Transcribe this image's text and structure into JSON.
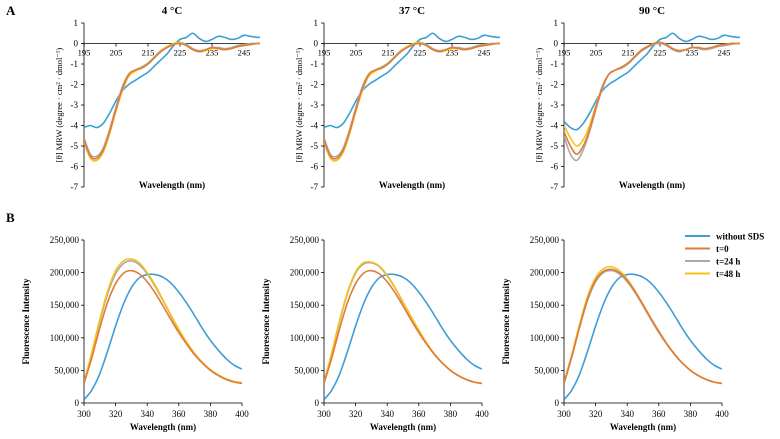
{
  "figure": {
    "panel_a_label": "A",
    "panel_b_label": "B"
  },
  "legend": {
    "entries": [
      {
        "label": "without SDS",
        "color": "#3d9fd6"
      },
      {
        "label": "t=0",
        "color": "#e07b39"
      },
      {
        "label": "t=24 h",
        "color": "#a9a9a9"
      },
      {
        "label": "t=48 h",
        "color": "#f5c21b"
      }
    ]
  },
  "colors": {
    "without_sds": "#3d9fd6",
    "t0": "#e07b39",
    "t24": "#a9a9a9",
    "t48": "#f5c21b",
    "axis": "#000000"
  },
  "chart_data": [
    {
      "id": "cd_4",
      "type": "line",
      "title": "4 °C",
      "xlabel": "Wavelength  (nm)",
      "ylabel": "[θ] MRW (degree · cm² · dmol⁻¹)",
      "xlim": [
        195,
        250
      ],
      "ylim": [
        -7,
        1
      ],
      "xticks": [
        195,
        205,
        215,
        225,
        235,
        245
      ],
      "yticks": [
        1,
        0,
        -1,
        -2,
        -3,
        -4,
        -5,
        -6,
        -7
      ],
      "x": [
        195,
        197,
        199,
        201,
        203,
        205,
        207,
        209,
        211,
        213,
        215,
        217,
        219,
        221,
        223,
        225,
        227,
        229,
        231,
        233,
        235,
        237,
        239,
        241,
        243,
        245,
        247,
        249,
        250
      ],
      "series": [
        {
          "name": "without SDS",
          "values": [
            -4.1,
            -4.0,
            -4.1,
            -3.9,
            -3.4,
            -2.8,
            -2.3,
            -2.0,
            -1.8,
            -1.6,
            -1.4,
            -1.1,
            -0.8,
            -0.5,
            -0.1,
            0.2,
            0.3,
            0.5,
            0.25,
            0.1,
            0.2,
            0.35,
            0.3,
            0.2,
            0.25,
            0.4,
            0.35,
            0.3,
            0.3
          ]
        },
        {
          "name": "t=0",
          "values": [
            -4.7,
            -5.5,
            -5.6,
            -5.2,
            -4.3,
            -3.2,
            -2.2,
            -1.5,
            -1.3,
            -1.2,
            -1.0,
            -0.7,
            -0.4,
            -0.2,
            -0.05,
            0.0,
            -0.1,
            -0.3,
            -0.4,
            -0.3,
            -0.2,
            -0.25,
            -0.3,
            -0.25,
            -0.15,
            -0.1,
            -0.05,
            0.0,
            0.0
          ]
        },
        {
          "name": "t=24 h",
          "values": [
            -4.6,
            -5.4,
            -5.5,
            -5.1,
            -4.2,
            -3.1,
            -2.1,
            -1.5,
            -1.3,
            -1.15,
            -0.95,
            -0.65,
            -0.35,
            -0.15,
            0.0,
            0.05,
            -0.05,
            -0.25,
            -0.35,
            -0.3,
            -0.2,
            -0.2,
            -0.25,
            -0.2,
            -0.1,
            -0.05,
            0.0,
            0.0,
            0.0
          ]
        },
        {
          "name": "t=48 h",
          "values": [
            -4.8,
            -5.6,
            -5.7,
            -5.3,
            -4.4,
            -3.3,
            -2.3,
            -1.6,
            -1.35,
            -1.2,
            -1.0,
            -0.7,
            -0.4,
            -0.15,
            0.0,
            0.05,
            -0.1,
            -0.3,
            -0.4,
            -0.35,
            -0.25,
            -0.25,
            -0.3,
            -0.25,
            -0.15,
            -0.1,
            -0.05,
            0.0,
            0.0
          ]
        }
      ]
    },
    {
      "id": "cd_37",
      "type": "line",
      "title": "37 °C",
      "xlabel": "Wavelength  (nm)",
      "ylabel": "[θ] MRW (degree · cm² · dmol⁻¹)",
      "xlim": [
        195,
        250
      ],
      "ylim": [
        -7,
        1
      ],
      "xticks": [
        195,
        205,
        215,
        225,
        235,
        245
      ],
      "yticks": [
        1,
        0,
        -1,
        -2,
        -3,
        -4,
        -5,
        -6,
        -7
      ],
      "x": [
        195,
        197,
        199,
        201,
        203,
        205,
        207,
        209,
        211,
        213,
        215,
        217,
        219,
        221,
        223,
        225,
        227,
        229,
        231,
        233,
        235,
        237,
        239,
        241,
        243,
        245,
        247,
        249,
        250
      ],
      "series": [
        {
          "name": "without SDS",
          "values": [
            -4.1,
            -4.0,
            -4.1,
            -3.9,
            -3.4,
            -2.8,
            -2.3,
            -2.0,
            -1.8,
            -1.6,
            -1.4,
            -1.1,
            -0.8,
            -0.5,
            -0.1,
            0.2,
            0.3,
            0.5,
            0.25,
            0.1,
            0.2,
            0.35,
            0.3,
            0.2,
            0.25,
            0.4,
            0.35,
            0.3,
            0.3
          ]
        },
        {
          "name": "t=0",
          "values": [
            -4.7,
            -5.5,
            -5.6,
            -5.2,
            -4.3,
            -3.2,
            -2.2,
            -1.5,
            -1.3,
            -1.2,
            -1.0,
            -0.7,
            -0.4,
            -0.2,
            -0.05,
            0.0,
            -0.1,
            -0.3,
            -0.4,
            -0.3,
            -0.2,
            -0.25,
            -0.3,
            -0.25,
            -0.15,
            -0.1,
            -0.05,
            0.0,
            0.0
          ]
        },
        {
          "name": "t=24 h",
          "values": [
            -4.6,
            -5.4,
            -5.5,
            -5.1,
            -4.2,
            -3.1,
            -2.1,
            -1.5,
            -1.3,
            -1.15,
            -0.95,
            -0.65,
            -0.35,
            -0.15,
            0.0,
            0.05,
            -0.05,
            -0.25,
            -0.35,
            -0.3,
            -0.2,
            -0.2,
            -0.25,
            -0.2,
            -0.1,
            -0.05,
            0.0,
            0.0,
            0.0
          ]
        },
        {
          "name": "t=48 h",
          "values": [
            -4.8,
            -5.6,
            -5.7,
            -5.3,
            -4.4,
            -3.3,
            -2.3,
            -1.6,
            -1.35,
            -1.2,
            -1.0,
            -0.7,
            -0.4,
            -0.15,
            0.0,
            0.05,
            -0.1,
            -0.3,
            -0.4,
            -0.35,
            -0.25,
            -0.25,
            -0.3,
            -0.25,
            -0.15,
            -0.1,
            -0.05,
            0.0,
            0.0
          ]
        }
      ]
    },
    {
      "id": "cd_90",
      "type": "line",
      "title": "90 °C",
      "xlabel": "Wavelength  (nm)",
      "ylabel": "[θ] MRW (degree · cm² · dmol⁻¹)",
      "xlim": [
        195,
        250
      ],
      "ylim": [
        -7,
        1
      ],
      "xticks": [
        195,
        205,
        215,
        225,
        235,
        245
      ],
      "yticks": [
        1,
        0,
        -1,
        -2,
        -3,
        -4,
        -5,
        -6,
        -7
      ],
      "x": [
        195,
        197,
        199,
        201,
        203,
        205,
        207,
        209,
        211,
        213,
        215,
        217,
        219,
        221,
        223,
        225,
        227,
        229,
        231,
        233,
        235,
        237,
        239,
        241,
        243,
        245,
        247,
        249,
        250
      ],
      "series": [
        {
          "name": "without SDS",
          "values": [
            -3.8,
            -4.1,
            -4.2,
            -3.9,
            -3.4,
            -2.8,
            -2.3,
            -2.0,
            -1.8,
            -1.6,
            -1.4,
            -1.1,
            -0.8,
            -0.5,
            -0.1,
            0.2,
            0.3,
            0.5,
            0.25,
            0.1,
            0.2,
            0.35,
            0.3,
            0.2,
            0.25,
            0.4,
            0.35,
            0.3,
            0.3
          ]
        },
        {
          "name": "t=0",
          "values": [
            -4.3,
            -5.0,
            -5.4,
            -5.0,
            -4.2,
            -3.1,
            -2.1,
            -1.5,
            -1.3,
            -1.15,
            -0.95,
            -0.65,
            -0.35,
            -0.15,
            0.0,
            0.05,
            -0.05,
            -0.25,
            -0.35,
            -0.3,
            -0.2,
            -0.2,
            -0.25,
            -0.2,
            -0.1,
            -0.05,
            0.0,
            0.0,
            0.0
          ]
        },
        {
          "name": "t=24 h",
          "values": [
            -4.5,
            -5.4,
            -5.7,
            -5.2,
            -4.3,
            -3.2,
            -2.2,
            -1.5,
            -1.3,
            -1.2,
            -1.0,
            -0.7,
            -0.4,
            -0.2,
            -0.05,
            0.0,
            -0.1,
            -0.3,
            -0.4,
            -0.3,
            -0.2,
            -0.25,
            -0.3,
            -0.25,
            -0.15,
            -0.1,
            -0.05,
            0.0,
            0.0
          ]
        },
        {
          "name": "t=48 h",
          "values": [
            -4.0,
            -4.6,
            -5.0,
            -4.7,
            -4.0,
            -3.0,
            -2.1,
            -1.5,
            -1.3,
            -1.15,
            -0.95,
            -0.65,
            -0.35,
            -0.15,
            0.0,
            0.05,
            -0.05,
            -0.25,
            -0.35,
            -0.3,
            -0.2,
            -0.2,
            -0.25,
            -0.2,
            -0.1,
            -0.05,
            0.0,
            0.0,
            0.0
          ]
        }
      ]
    },
    {
      "id": "fl_4",
      "type": "line",
      "title": "",
      "xlabel": "Wavelength  (nm)",
      "ylabel": "Fluorescence Intensity",
      "xlim": [
        300,
        400
      ],
      "ylim": [
        0,
        250000
      ],
      "xticks": [
        300,
        320,
        340,
        360,
        380,
        400
      ],
      "yticks": [
        0,
        50000,
        100000,
        150000,
        200000,
        250000
      ],
      "ytick_labels": [
        "0",
        "50,000",
        "100,000",
        "150,000",
        "200,000",
        "250,000"
      ],
      "x": [
        300,
        305,
        310,
        315,
        320,
        325,
        330,
        335,
        340,
        345,
        350,
        355,
        360,
        365,
        370,
        375,
        380,
        385,
        390,
        395,
        400
      ],
      "series": [
        {
          "name": "without SDS",
          "values": [
            5000,
            20000,
            45000,
            80000,
            118000,
            152000,
            177000,
            192000,
            197000,
            197000,
            193000,
            184000,
            170000,
            153000,
            134000,
            114000,
            96000,
            81000,
            68000,
            58000,
            52000
          ]
        },
        {
          "name": "t=0",
          "values": [
            30000,
            70000,
            115000,
            155000,
            183000,
            199000,
            203000,
            198000,
            186000,
            169000,
            149000,
            128000,
            108000,
            90000,
            74000,
            61000,
            50000,
            42000,
            36000,
            32000,
            30000
          ]
        },
        {
          "name": "t=24 h",
          "values": [
            30000,
            75000,
            125000,
            168000,
            198000,
            214000,
            218000,
            212000,
            198000,
            179000,
            157000,
            134000,
            112000,
            93000,
            76000,
            62000,
            51000,
            43000,
            37000,
            33000,
            31000
          ]
        },
        {
          "name": "t=48 h",
          "values": [
            32000,
            78000,
            128000,
            172000,
            203000,
            218000,
            221000,
            215000,
            200000,
            181000,
            158000,
            135000,
            113000,
            93000,
            76000,
            62000,
            51000,
            43000,
            37000,
            33000,
            31000
          ]
        }
      ]
    },
    {
      "id": "fl_37",
      "type": "line",
      "title": "",
      "xlabel": "Wavelength  (nm)",
      "ylabel": "Fluorescence Intensity",
      "xlim": [
        300,
        400
      ],
      "ylim": [
        0,
        250000
      ],
      "xticks": [
        300,
        320,
        340,
        360,
        380,
        400
      ],
      "yticks": [
        0,
        50000,
        100000,
        150000,
        200000,
        250000
      ],
      "ytick_labels": [
        "0",
        "50,000",
        "100,000",
        "150,000",
        "200,000",
        "250,000"
      ],
      "x": [
        300,
        305,
        310,
        315,
        320,
        325,
        330,
        335,
        340,
        345,
        350,
        355,
        360,
        365,
        370,
        375,
        380,
        385,
        390,
        395,
        400
      ],
      "series": [
        {
          "name": "without SDS",
          "values": [
            5000,
            20000,
            45000,
            80000,
            118000,
            152000,
            177000,
            192000,
            197000,
            197000,
            193000,
            184000,
            170000,
            153000,
            134000,
            114000,
            96000,
            81000,
            68000,
            58000,
            52000
          ]
        },
        {
          "name": "t=0",
          "values": [
            30000,
            70000,
            115000,
            155000,
            183000,
            199000,
            203000,
            198000,
            186000,
            169000,
            149000,
            128000,
            108000,
            90000,
            74000,
            61000,
            50000,
            42000,
            36000,
            32000,
            30000
          ]
        },
        {
          "name": "t=24 h",
          "values": [
            31000,
            76000,
            126000,
            169000,
            199000,
            213000,
            215000,
            209000,
            195000,
            176000,
            154000,
            132000,
            111000,
            92000,
            75000,
            61000,
            50000,
            42000,
            36000,
            32000,
            30000
          ]
        },
        {
          "name": "t=48 h",
          "values": [
            32000,
            78000,
            128000,
            171000,
            201000,
            215000,
            216000,
            210000,
            196000,
            177000,
            155000,
            133000,
            112000,
            92000,
            75000,
            61000,
            50000,
            42000,
            36000,
            32000,
            30000
          ]
        }
      ]
    },
    {
      "id": "fl_90",
      "type": "line",
      "title": "",
      "xlabel": "Wavelength  (nm)",
      "ylabel": "Fluorescence Intensity",
      "xlim": [
        300,
        400
      ],
      "ylim": [
        0,
        250000
      ],
      "xticks": [
        300,
        320,
        340,
        360,
        380,
        400
      ],
      "yticks": [
        0,
        50000,
        100000,
        150000,
        200000,
        250000
      ],
      "ytick_labels": [
        "0",
        "50,000",
        "100,000",
        "150,000",
        "200,000",
        "250,000"
      ],
      "x": [
        300,
        305,
        310,
        315,
        320,
        325,
        330,
        335,
        340,
        345,
        350,
        355,
        360,
        365,
        370,
        375,
        380,
        385,
        390,
        395,
        400
      ],
      "series": [
        {
          "name": "without SDS",
          "values": [
            5000,
            20000,
            45000,
            80000,
            118000,
            152000,
            177000,
            192000,
            197000,
            197000,
            193000,
            184000,
            170000,
            153000,
            134000,
            114000,
            96000,
            81000,
            68000,
            58000,
            52000
          ]
        },
        {
          "name": "t=0",
          "values": [
            30000,
            72000,
            118000,
            160000,
            188000,
            202000,
            205000,
            200000,
            188000,
            171000,
            151000,
            130000,
            110000,
            91000,
            75000,
            61000,
            50000,
            42000,
            36000,
            32000,
            30000
          ]
        },
        {
          "name": "t=24 h",
          "values": [
            30000,
            71000,
            117000,
            158000,
            186000,
            200000,
            203000,
            198000,
            186000,
            169000,
            149000,
            128000,
            108000,
            90000,
            74000,
            61000,
            50000,
            42000,
            36000,
            32000,
            30000
          ]
        },
        {
          "name": "t=48 h",
          "values": [
            32000,
            75000,
            122000,
            164000,
            192000,
            206000,
            209000,
            203000,
            190000,
            172000,
            151000,
            130000,
            110000,
            91000,
            75000,
            61000,
            50000,
            42000,
            36000,
            32000,
            30000
          ]
        }
      ]
    }
  ]
}
